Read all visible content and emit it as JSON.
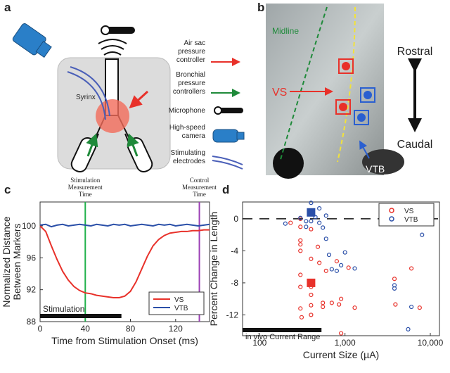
{
  "panel_a": {
    "label": "a",
    "syrinx": "Syrinx",
    "legend": [
      [
        "Air sac",
        "pressure",
        "controller"
      ],
      [
        "Bronchial",
        "pressure",
        "controllers"
      ],
      [
        "Microphone"
      ],
      [
        "High-speed",
        "camera"
      ],
      [
        "Stimulating",
        "electrodes"
      ]
    ]
  },
  "panel_b": {
    "label": "b",
    "midline": "Midline",
    "vs": "VS",
    "vtb": "VTB",
    "rostral": "Rostral",
    "caudal": "Caudal"
  },
  "chart_data": [
    {
      "type": "line",
      "panel": "c",
      "ylabel": [
        "Normalized Distance",
        "Between Markers"
      ],
      "xlabel": "Time from Stimulation Onset (ms)",
      "x": [
        0,
        5,
        10,
        15,
        20,
        25,
        30,
        35,
        40,
        45,
        50,
        55,
        60,
        65,
        70,
        75,
        80,
        85,
        90,
        95,
        100,
        105,
        110,
        115,
        120,
        125,
        130,
        135,
        140,
        145,
        150
      ],
      "series": [
        {
          "name": "VS",
          "color": "#e8312a",
          "values": [
            100,
            99.3,
            97.5,
            95.8,
            94.3,
            93.2,
            92.4,
            91.9,
            91.6,
            91.5,
            91.3,
            91.2,
            91.1,
            91.0,
            91.0,
            91.2,
            91.8,
            93.0,
            94.6,
            96.2,
            97.5,
            98.3,
            98.8,
            99.1,
            99.2,
            99.3,
            99.3,
            99.4,
            99.4,
            99.5,
            99.5
          ]
        },
        {
          "name": "VTB",
          "color": "#2a4fa8",
          "values": [
            100.1,
            100.2,
            99.9,
            100.1,
            100.2,
            100.0,
            100.1,
            100.2,
            100.1,
            100.0,
            100.2,
            100.1,
            100.0,
            100.2,
            100.1,
            100.2,
            100.0,
            100.1,
            100.2,
            100.1,
            100.0,
            100.2,
            100.1,
            100.2,
            100.0,
            100.1,
            100.2,
            100.1,
            100.0,
            100.1,
            100.2
          ]
        }
      ],
      "xlim": [
        0,
        150
      ],
      "ylim": [
        88,
        103
      ],
      "xticks": [
        0,
        40,
        80,
        120
      ],
      "yticks": [
        88,
        92,
        96,
        100
      ],
      "legend": "lower right",
      "markers": [
        {
          "x": 40,
          "color": "#22b14c",
          "label": [
            "Stimulation",
            "Measurement",
            "Time"
          ]
        },
        {
          "x": 141,
          "color": "#9b3fb5",
          "label": [
            "Control",
            "Measurement",
            "Time"
          ]
        }
      ],
      "bar": {
        "label": "Stimulation",
        "range": [
          0,
          72
        ]
      }
    },
    {
      "type": "scatter",
      "panel": "d",
      "ylabel": "Percent Change in Length",
      "xlabel": "Current Size (µA)",
      "xscale": "log",
      "series": [
        {
          "name": "VS",
          "color": "#e8312a",
          "x": [
            230,
            300,
            300,
            300,
            300,
            300,
            300,
            300,
            300,
            310,
            400,
            400,
            400,
            400,
            400,
            400,
            480,
            500,
            550,
            550,
            600,
            700,
            800,
            850,
            900,
            900,
            1100,
            1300,
            3800,
            3900,
            6000,
            7500
          ],
          "values": [
            -0.5,
            -1,
            0,
            -2.7,
            -3.2,
            -4,
            -7,
            -8.5,
            -11.2,
            -12.3,
            -1.3,
            -5,
            -8.5,
            -9.5,
            -10.8,
            -12,
            -3.5,
            -5.5,
            -10.5,
            -11,
            -6.5,
            -10.5,
            -5.3,
            -10.7,
            -14.3,
            -10,
            -6.1,
            -11.1,
            -7.5,
            -10.7,
            -6.2,
            -11.1
          ],
          "highlight": [
            400,
            -8
          ]
        },
        {
          "name": "VTB",
          "color": "#2a4fa8",
          "x": [
            200,
            300,
            350,
            350,
            400,
            400,
            400,
            450,
            500,
            500,
            550,
            600,
            600,
            650,
            700,
            800,
            900,
            1000,
            1300,
            3800,
            3800,
            5500,
            6000,
            8000
          ],
          "values": [
            -0.6,
            0.1,
            -0.3,
            -1,
            2,
            1,
            -0.3,
            0.2,
            -0.5,
            1.3,
            -1.1,
            0.4,
            -2.5,
            -4.5,
            -6.3,
            -6.5,
            -5.8,
            -4.2,
            -6.2,
            -8.3,
            -8.7,
            -13.8,
            -11,
            -2
          ],
          "highlight": [
            400,
            0.8
          ]
        }
      ],
      "xlim": [
        63,
        12800
      ],
      "ylim": [
        -14.6,
        2.1
      ],
      "xticks": [
        100,
        {
          "value": 1000,
          "label": "1,000"
        },
        {
          "value": 10000,
          "label": "10,000"
        }
      ],
      "yticks": [
        0,
        -4,
        -8,
        -12
      ],
      "reference_line": 0,
      "legend": "upper right",
      "bar": {
        "label": "in vivo Current Range",
        "range": [
          63,
          530
        ]
      }
    }
  ]
}
